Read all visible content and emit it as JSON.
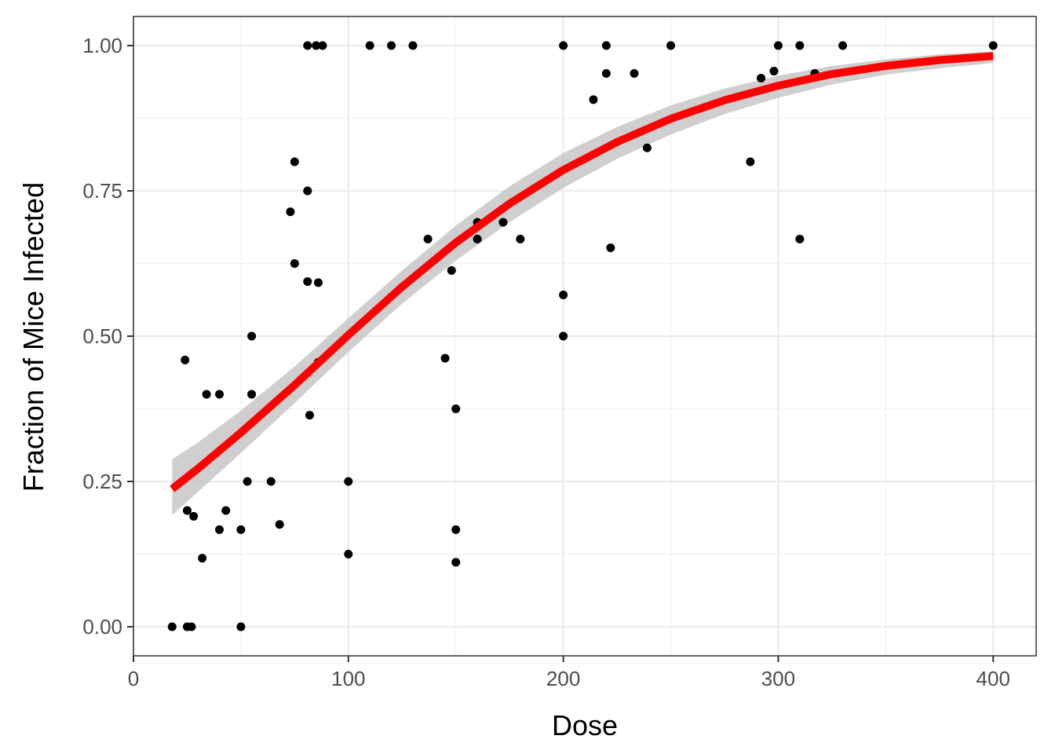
{
  "chart_data": {
    "type": "scatter",
    "title": "",
    "xlabel": "Dose",
    "ylabel": "Fraction of Mice Infected",
    "xlim": [
      0,
      420
    ],
    "ylim": [
      -0.05,
      1.05
    ],
    "x_ticks": [
      0,
      100,
      200,
      300,
      400
    ],
    "x_tick_labels": [
      "0",
      "100",
      "200",
      "300",
      "400"
    ],
    "y_ticks": [
      0,
      0.25,
      0.5,
      0.75,
      1.0
    ],
    "y_tick_labels": [
      "0.00",
      "0.25",
      "0.50",
      "0.75",
      "1.00"
    ],
    "grid": true,
    "legend": "none",
    "colors": {
      "points": "#000000",
      "fit_line": "#ff0000",
      "confidence_band": "#bfbfbf"
    },
    "points": [
      {
        "x": 18,
        "y": 0.0
      },
      {
        "x": 25,
        "y": 0.0
      },
      {
        "x": 27,
        "y": 0.0
      },
      {
        "x": 50,
        "y": 0.0
      },
      {
        "x": 24,
        "y": 0.459
      },
      {
        "x": 25,
        "y": 0.2
      },
      {
        "x": 28,
        "y": 0.19
      },
      {
        "x": 32,
        "y": 0.118
      },
      {
        "x": 34,
        "y": 0.4
      },
      {
        "x": 40,
        "y": 0.4
      },
      {
        "x": 40,
        "y": 0.167
      },
      {
        "x": 43,
        "y": 0.2
      },
      {
        "x": 50,
        "y": 0.167
      },
      {
        "x": 53,
        "y": 0.25
      },
      {
        "x": 55,
        "y": 0.5
      },
      {
        "x": 55,
        "y": 0.4
      },
      {
        "x": 64,
        "y": 0.25
      },
      {
        "x": 68,
        "y": 0.176
      },
      {
        "x": 73,
        "y": 0.714
      },
      {
        "x": 75,
        "y": 0.8
      },
      {
        "x": 75,
        "y": 0.625
      },
      {
        "x": 81,
        "y": 0.75
      },
      {
        "x": 81,
        "y": 0.594
      },
      {
        "x": 82,
        "y": 0.364
      },
      {
        "x": 81,
        "y": 1.0
      },
      {
        "x": 85,
        "y": 1.0
      },
      {
        "x": 88,
        "y": 1.0
      },
      {
        "x": 86,
        "y": 0.592
      },
      {
        "x": 86,
        "y": 0.455
      },
      {
        "x": 100,
        "y": 0.25
      },
      {
        "x": 100,
        "y": 0.125
      },
      {
        "x": 110,
        "y": 1.0
      },
      {
        "x": 120,
        "y": 1.0
      },
      {
        "x": 130,
        "y": 1.0
      },
      {
        "x": 137,
        "y": 0.667
      },
      {
        "x": 145,
        "y": 0.462
      },
      {
        "x": 148,
        "y": 0.613
      },
      {
        "x": 150,
        "y": 0.375
      },
      {
        "x": 150,
        "y": 0.167
      },
      {
        "x": 150,
        "y": 0.111
      },
      {
        "x": 160,
        "y": 0.696
      },
      {
        "x": 160,
        "y": 0.667
      },
      {
        "x": 172,
        "y": 0.696
      },
      {
        "x": 180,
        "y": 0.667
      },
      {
        "x": 200,
        "y": 1.0
      },
      {
        "x": 200,
        "y": 0.571
      },
      {
        "x": 200,
        "y": 0.5
      },
      {
        "x": 214,
        "y": 0.907
      },
      {
        "x": 220,
        "y": 1.0
      },
      {
        "x": 220,
        "y": 0.952
      },
      {
        "x": 222,
        "y": 0.652
      },
      {
        "x": 233,
        "y": 0.952
      },
      {
        "x": 239,
        "y": 0.824
      },
      {
        "x": 250,
        "y": 1.0
      },
      {
        "x": 287,
        "y": 0.8
      },
      {
        "x": 292,
        "y": 0.944
      },
      {
        "x": 298,
        "y": 0.956
      },
      {
        "x": 300,
        "y": 1.0
      },
      {
        "x": 310,
        "y": 1.0
      },
      {
        "x": 310,
        "y": 0.667
      },
      {
        "x": 317,
        "y": 0.952
      },
      {
        "x": 330,
        "y": 1.0
      },
      {
        "x": 400,
        "y": 1.0
      }
    ],
    "fit_line": {
      "x": [
        18,
        30,
        50,
        75,
        100,
        125,
        150,
        175,
        200,
        225,
        250,
        275,
        300,
        325,
        350,
        375,
        400
      ],
      "y": [
        0.237,
        0.272,
        0.334,
        0.416,
        0.502,
        0.585,
        0.661,
        0.728,
        0.786,
        0.834,
        0.874,
        0.906,
        0.931,
        0.951,
        0.965,
        0.975,
        0.982
      ],
      "lower": [
        0.192,
        0.232,
        0.299,
        0.385,
        0.473,
        0.556,
        0.63,
        0.696,
        0.755,
        0.805,
        0.847,
        0.882,
        0.91,
        0.933,
        0.95,
        0.961,
        0.97
      ],
      "upper": [
        0.288,
        0.317,
        0.372,
        0.448,
        0.531,
        0.613,
        0.69,
        0.758,
        0.815,
        0.86,
        0.897,
        0.926,
        0.948,
        0.965,
        0.976,
        0.985,
        0.99
      ]
    }
  }
}
